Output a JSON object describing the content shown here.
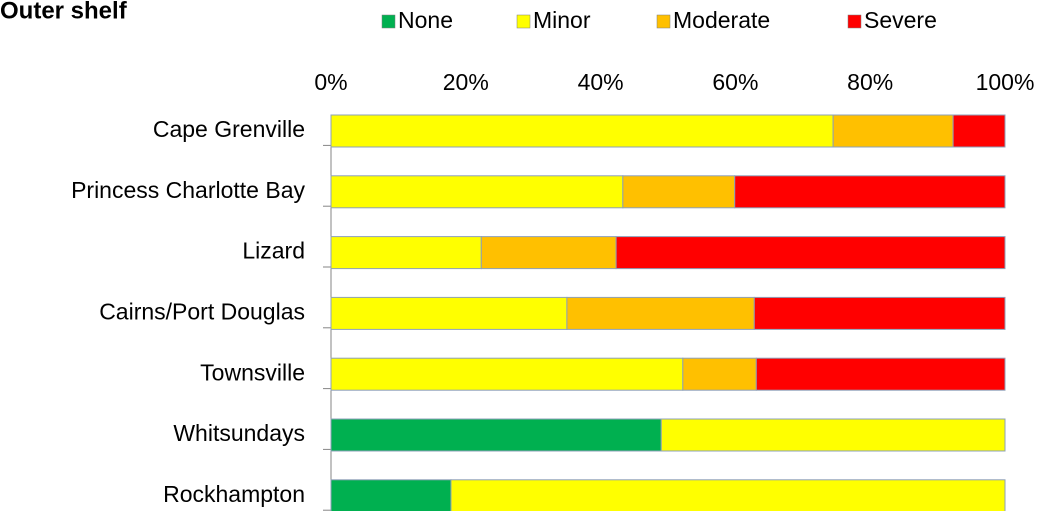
{
  "chart_data": {
    "type": "stacked_barh",
    "title": "Outer shelf",
    "categories": [
      "Cape Grenville",
      "Princess Charlotte Bay",
      "Lizard",
      "Cairns/Port Douglas",
      "Townsville",
      "Whitsundays",
      "Rockhampton"
    ],
    "series": [
      {
        "name": "None",
        "color": "#00b050",
        "values": [
          0,
          0,
          0,
          0,
          0,
          49.0,
          17.8
        ]
      },
      {
        "name": "Minor",
        "color": "#ffff00",
        "values": [
          74.5,
          43.3,
          22.3,
          35.0,
          52.2,
          51.0,
          82.2
        ]
      },
      {
        "name": "Moderate",
        "color": "#ffc000",
        "values": [
          17.8,
          16.6,
          20.0,
          27.8,
          10.9,
          0,
          0
        ]
      },
      {
        "name": "Severe",
        "color": "#ff0000",
        "values": [
          7.7,
          40.1,
          57.7,
          37.2,
          36.9,
          0,
          0
        ]
      }
    ],
    "xlim": [
      0,
      100
    ],
    "xticks": [
      {
        "value": 0,
        "label": "0%"
      },
      {
        "value": 20,
        "label": "20%"
      },
      {
        "value": 40,
        "label": "40%"
      },
      {
        "value": 60,
        "label": "60%"
      },
      {
        "value": 80,
        "label": "80%"
      },
      {
        "value": 100,
        "label": "100%"
      }
    ],
    "legend": "top"
  }
}
